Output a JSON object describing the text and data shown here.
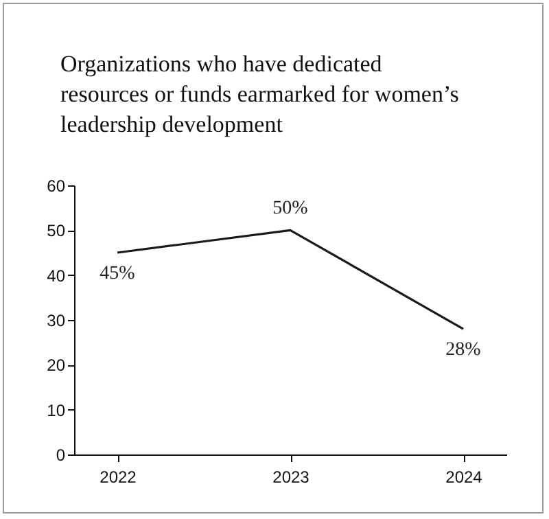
{
  "chart_data": {
    "type": "line",
    "title": "Organizations who have dedicated resources or funds earmarked for women’s leadership development",
    "categories": [
      "2022",
      "2023",
      "2024"
    ],
    "series": [
      {
        "color": "#1a1a1a",
        "values": [
          45,
          50,
          28
        ],
        "value_labels": [
          "45%",
          "50%",
          "28%"
        ]
      }
    ],
    "ylim": [
      0,
      60
    ],
    "yticks": [
      0,
      10,
      20,
      30,
      40,
      50,
      60
    ],
    "grid": false,
    "marker": "none",
    "line_style": "solid"
  }
}
